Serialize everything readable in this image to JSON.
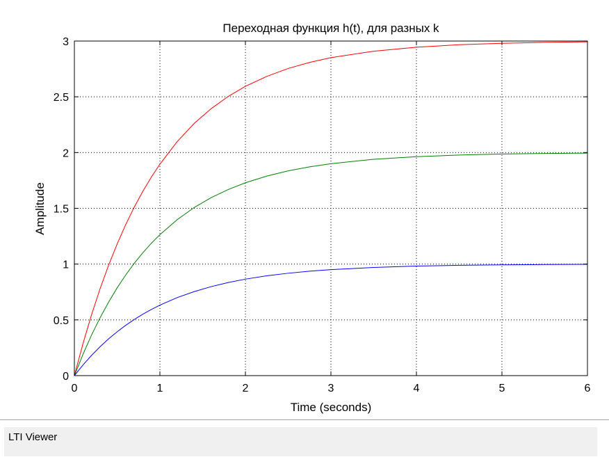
{
  "status_bar": {
    "text": "LTI Viewer"
  },
  "chart_data": {
    "type": "line",
    "title": "Переходная функция h(t), для разных k",
    "xlabel": "Time (seconds)",
    "ylabel": "Amplitude",
    "xlim": [
      0,
      6
    ],
    "ylim": [
      0,
      3
    ],
    "xticks": [
      0,
      1,
      2,
      3,
      4,
      5,
      6
    ],
    "xtick_labels": [
      "0",
      "1",
      "2",
      "3",
      "4",
      "5",
      "6"
    ],
    "yticks": [
      0,
      0.5,
      1,
      1.5,
      2,
      2.5,
      3
    ],
    "ytick_labels": [
      "0",
      "0.5",
      "1",
      "1.5",
      "2",
      "2.5",
      "3"
    ],
    "grid": true,
    "x": [
      0,
      0.1,
      0.2,
      0.3,
      0.4,
      0.5,
      0.6,
      0.7,
      0.8,
      0.9,
      1.0,
      1.2,
      1.4,
      1.6,
      1.8,
      2.0,
      2.25,
      2.5,
      2.75,
      3.0,
      3.5,
      4.0,
      4.5,
      5.0,
      5.5,
      6.0
    ],
    "series": [
      {
        "color": "#ff0000",
        "values": [
          0,
          0.285,
          0.544,
          0.778,
          0.99,
          1.18,
          1.354,
          1.51,
          1.652,
          1.78,
          1.896,
          2.096,
          2.261,
          2.394,
          2.504,
          2.594,
          2.683,
          2.754,
          2.808,
          2.851,
          2.909,
          2.945,
          2.967,
          2.98,
          2.988,
          2.993
        ]
      },
      {
        "color": "#008000",
        "values": [
          0,
          0.19,
          0.363,
          0.518,
          0.659,
          0.787,
          0.902,
          1.007,
          1.101,
          1.187,
          1.264,
          1.397,
          1.507,
          1.596,
          1.669,
          1.729,
          1.789,
          1.836,
          1.872,
          1.9,
          1.94,
          1.963,
          1.978,
          1.987,
          1.992,
          1.995
        ]
      },
      {
        "color": "#0000ff",
        "values": [
          0,
          0.095,
          0.181,
          0.259,
          0.33,
          0.393,
          0.451,
          0.503,
          0.551,
          0.593,
          0.632,
          0.699,
          0.753,
          0.798,
          0.835,
          0.865,
          0.895,
          0.918,
          0.936,
          0.95,
          0.97,
          0.982,
          0.989,
          0.993,
          0.996,
          0.998
        ]
      }
    ]
  }
}
